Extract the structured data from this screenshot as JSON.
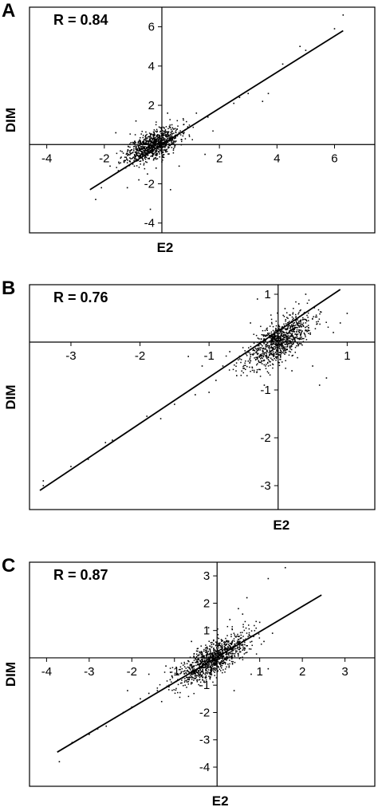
{
  "chart_data": [
    {
      "panel": "A",
      "type": "scatter",
      "annotation": "R = 0.84",
      "r": 0.84,
      "xlabel": "E2",
      "ylabel": "DIM",
      "xlim": [
        -4.6,
        7.4
      ],
      "ylim": [
        -4.5,
        7.0
      ],
      "xticks": [
        -4,
        -2,
        2,
        4,
        6
      ],
      "yticks": [
        -4,
        -2,
        2,
        4,
        6
      ],
      "fit_line": {
        "x": [
          -2.5,
          6.3
        ],
        "y": [
          -2.3,
          5.8
        ]
      },
      "cluster": {
        "center": [
          -0.3,
          0.0
        ],
        "spread": [
          0.45,
          0.35
        ],
        "slope": 0.6,
        "n": 900
      },
      "outliers": [
        [
          3.0,
          2.6
        ],
        [
          3.5,
          2.2
        ],
        [
          3.7,
          2.6
        ],
        [
          4.2,
          4.1
        ],
        [
          4.8,
          5.0
        ],
        [
          5.0,
          4.8
        ],
        [
          6.0,
          5.9
        ],
        [
          6.3,
          6.6
        ],
        [
          2.5,
          2.1
        ],
        [
          2.7,
          2.4
        ],
        [
          1.2,
          1.6
        ],
        [
          1.6,
          1.4
        ],
        [
          -2.3,
          -2.8
        ],
        [
          -2.1,
          -2.2
        ],
        [
          -1.8,
          -1.1
        ],
        [
          -1.5,
          -0.9
        ],
        [
          -1.2,
          -2.2
        ],
        [
          -0.8,
          -1.8
        ],
        [
          -0.5,
          -1.5
        ],
        [
          -0.2,
          -1.2
        ],
        [
          0.6,
          -1.1
        ],
        [
          0.9,
          0.9
        ],
        [
          0.2,
          1.6
        ],
        [
          -0.9,
          1.2
        ],
        [
          1.5,
          -0.5
        ],
        [
          -1.6,
          0.6
        ],
        [
          0.3,
          -2.3
        ],
        [
          -0.4,
          -3.3
        ]
      ]
    },
    {
      "panel": "B",
      "type": "scatter",
      "annotation": "R = 0.76",
      "r": 0.76,
      "xlabel": "E2",
      "ylabel": "DIM",
      "xlim": [
        -3.6,
        1.4
      ],
      "ylim": [
        -3.5,
        1.2
      ],
      "xticks": [
        -3,
        -2,
        -1,
        1
      ],
      "yticks": [
        -3,
        -2,
        -1,
        1
      ],
      "fit_line": {
        "x": [
          -3.45,
          0.9
        ],
        "y": [
          -3.1,
          1.1
        ]
      },
      "cluster": {
        "center": [
          0.0,
          0.0
        ],
        "spread": [
          0.24,
          0.2
        ],
        "slope": 0.8,
        "n": 900
      },
      "outliers": [
        [
          -3.4,
          -2.9
        ],
        [
          -3.4,
          -3.0
        ],
        [
          -3.0,
          -2.6
        ],
        [
          -2.75,
          -2.45
        ],
        [
          -2.5,
          -2.1
        ],
        [
          -2.4,
          -2.05
        ],
        [
          -2.0,
          -1.7
        ],
        [
          -1.9,
          -1.55
        ],
        [
          -1.7,
          -1.6
        ],
        [
          -1.5,
          -1.3
        ],
        [
          -1.2,
          -1.1
        ],
        [
          -1.0,
          -1.05
        ],
        [
          -0.9,
          -0.8
        ],
        [
          -0.8,
          -0.5
        ],
        [
          -0.6,
          -0.7
        ],
        [
          -0.7,
          -0.2
        ],
        [
          -1.1,
          -0.5
        ],
        [
          -1.3,
          -0.3
        ],
        [
          -0.4,
          0.4
        ],
        [
          -0.3,
          0.9
        ],
        [
          0.2,
          -0.6
        ],
        [
          0.5,
          -0.5
        ],
        [
          0.6,
          -0.9
        ],
        [
          0.7,
          -0.75
        ],
        [
          0.9,
          0.4
        ],
        [
          1.0,
          0.6
        ],
        [
          0.4,
          1.0
        ],
        [
          0.3,
          0.8
        ],
        [
          -0.2,
          -0.9
        ],
        [
          0.1,
          0.7
        ],
        [
          0.8,
          0.2
        ]
      ]
    },
    {
      "panel": "C",
      "type": "scatter",
      "annotation": "R = 0.87",
      "r": 0.87,
      "xlabel": "E2",
      "ylabel": "DIM",
      "xlim": [
        -4.4,
        3.7
      ],
      "ylim": [
        -4.7,
        3.5
      ],
      "xticks": [
        -4,
        -3,
        -2,
        -1,
        1,
        2,
        3
      ],
      "yticks": [
        -4,
        -3,
        -2,
        -1,
        1,
        2,
        3
      ],
      "fit_line": {
        "x": [
          -3.75,
          2.45
        ],
        "y": [
          -3.45,
          2.3
        ]
      },
      "cluster": {
        "center": [
          -0.1,
          -0.05
        ],
        "spread": [
          0.4,
          0.3
        ],
        "slope": 0.85,
        "n": 1000
      },
      "outliers": [
        [
          -3.7,
          -3.8
        ],
        [
          -3.4,
          -3.1
        ],
        [
          -3.0,
          -2.8
        ],
        [
          -2.8,
          -2.6
        ],
        [
          -2.6,
          -2.5
        ],
        [
          -2.4,
          -2.2
        ],
        [
          -2.2,
          -2.0
        ],
        [
          -2.0,
          -1.8
        ],
        [
          -1.8,
          -1.5
        ],
        [
          -1.6,
          -1.3
        ],
        [
          -1.4,
          -1.2
        ],
        [
          -1.3,
          -1.6
        ],
        [
          -1.1,
          -0.8
        ],
        [
          -1.6,
          -0.6
        ],
        [
          -1.2,
          -0.3
        ],
        [
          -2.1,
          -1.2
        ],
        [
          1.0,
          1.3
        ],
        [
          1.1,
          0.6
        ],
        [
          1.3,
          0.9
        ],
        [
          1.6,
          3.3
        ],
        [
          1.2,
          2.9
        ],
        [
          0.7,
          2.2
        ],
        [
          0.5,
          1.8
        ],
        [
          0.8,
          -0.6
        ],
        [
          1.2,
          -0.4
        ],
        [
          0.4,
          -1.2
        ],
        [
          -0.2,
          1.1
        ],
        [
          0.3,
          1.4
        ],
        [
          0.6,
          1.6
        ],
        [
          -0.6,
          0.6
        ]
      ]
    }
  ]
}
